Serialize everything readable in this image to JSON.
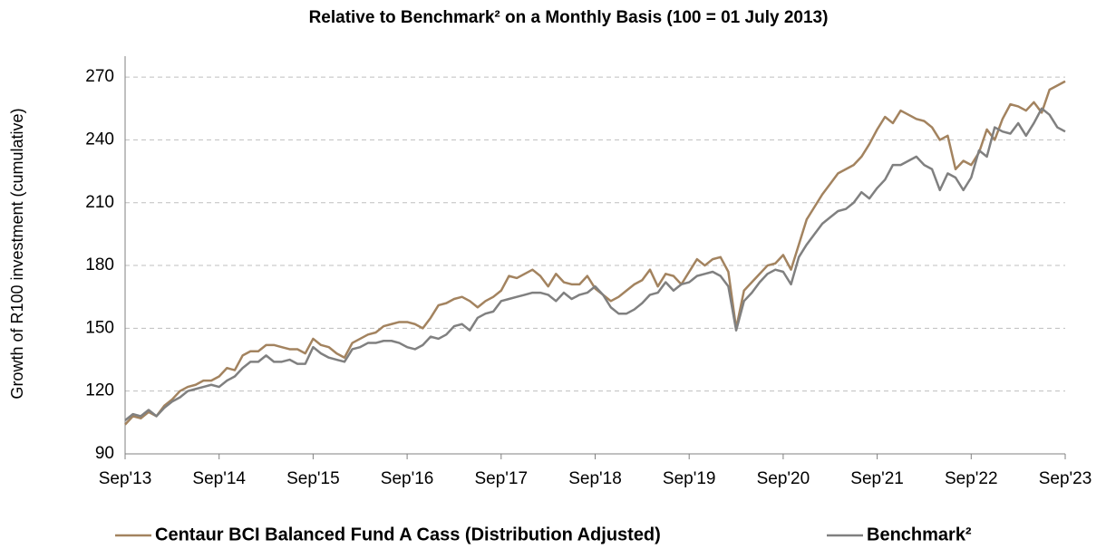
{
  "chart_data": {
    "type": "line",
    "title": "Relative to Benchmark² on a Monthly Basis (100 = 01 July 2013)",
    "y_label": "Growth of R100 investment (cumulative)",
    "categories": [
      "Sep'13",
      null,
      null,
      null,
      null,
      null,
      null,
      null,
      null,
      null,
      null,
      null,
      "Sep'14",
      null,
      null,
      null,
      null,
      null,
      null,
      null,
      null,
      null,
      null,
      null,
      "Sep'15",
      null,
      null,
      null,
      null,
      null,
      null,
      null,
      null,
      null,
      null,
      null,
      "Sep'16",
      null,
      null,
      null,
      null,
      null,
      null,
      null,
      null,
      null,
      null,
      null,
      "Sep'17",
      null,
      null,
      null,
      null,
      null,
      null,
      null,
      null,
      null,
      null,
      null,
      "Sep'18",
      null,
      null,
      null,
      null,
      null,
      null,
      null,
      null,
      null,
      null,
      null,
      "Sep'19",
      null,
      null,
      null,
      null,
      null,
      null,
      null,
      null,
      null,
      null,
      null,
      "Sep'20",
      null,
      null,
      null,
      null,
      null,
      null,
      null,
      null,
      null,
      null,
      null,
      "Sep'21",
      null,
      null,
      null,
      null,
      null,
      null,
      null,
      null,
      null,
      null,
      null,
      "Sep'22",
      null,
      null,
      null,
      null,
      null,
      null,
      null,
      null,
      null,
      null,
      null,
      "Sep'23"
    ],
    "series": [
      {
        "name": "Centaur BCI Balanced Fund A Cass (Distribution Adjusted)",
        "color": "#a3835f",
        "values": [
          104,
          108,
          107,
          110,
          108,
          113,
          116,
          120,
          122,
          123,
          125,
          125,
          127,
          131,
          130,
          137,
          139,
          139,
          142,
          142,
          141,
          140,
          140,
          138,
          145,
          142,
          141,
          138,
          136,
          143,
          145,
          147,
          148,
          151,
          152,
          153,
          153,
          152,
          150,
          155,
          161,
          162,
          164,
          165,
          163,
          160,
          163,
          165,
          168,
          175,
          174,
          176,
          178,
          175,
          170,
          176,
          172,
          171,
          171,
          175,
          169,
          166,
          163,
          165,
          168,
          171,
          173,
          178,
          170,
          176,
          175,
          171,
          177,
          183,
          180,
          183,
          184,
          177,
          150,
          168,
          172,
          176,
          180,
          181,
          185,
          178,
          190,
          202,
          208,
          214,
          219,
          224,
          226,
          228,
          232,
          238,
          245,
          251,
          248,
          254,
          252,
          250,
          249,
          246,
          240,
          242,
          226,
          230,
          228,
          234,
          245,
          240,
          250,
          257,
          256,
          254,
          258,
          253,
          264,
          266,
          268
        ]
      },
      {
        "name": "Benchmark²",
        "color": "#808080",
        "values": [
          106,
          109,
          108,
          111,
          108,
          112,
          115,
          117,
          120,
          121,
          122,
          123,
          122,
          125,
          127,
          131,
          134,
          134,
          137,
          134,
          134,
          135,
          133,
          133,
          141,
          138,
          136,
          135,
          134,
          140,
          141,
          143,
          143,
          144,
          144,
          143,
          141,
          140,
          142,
          146,
          145,
          147,
          151,
          152,
          149,
          155,
          157,
          158,
          163,
          164,
          165,
          166,
          167,
          167,
          166,
          163,
          167,
          164,
          166,
          167,
          170,
          166,
          160,
          157,
          157,
          159,
          162,
          166,
          167,
          172,
          168,
          171,
          172,
          175,
          176,
          177,
          175,
          170,
          149,
          163,
          167,
          172,
          176,
          178,
          177,
          171,
          184,
          190,
          195,
          200,
          203,
          206,
          207,
          210,
          215,
          212,
          217,
          221,
          228,
          228,
          230,
          232,
          228,
          226,
          216,
          224,
          222,
          216,
          222,
          235,
          232,
          246,
          244,
          243,
          248,
          242,
          248,
          255,
          252,
          246,
          244
        ]
      }
    ],
    "ylim": [
      90,
      280
    ],
    "yticks": [
      90,
      120,
      150,
      180,
      210,
      240,
      270
    ],
    "grid": true,
    "legend": "bottom"
  }
}
